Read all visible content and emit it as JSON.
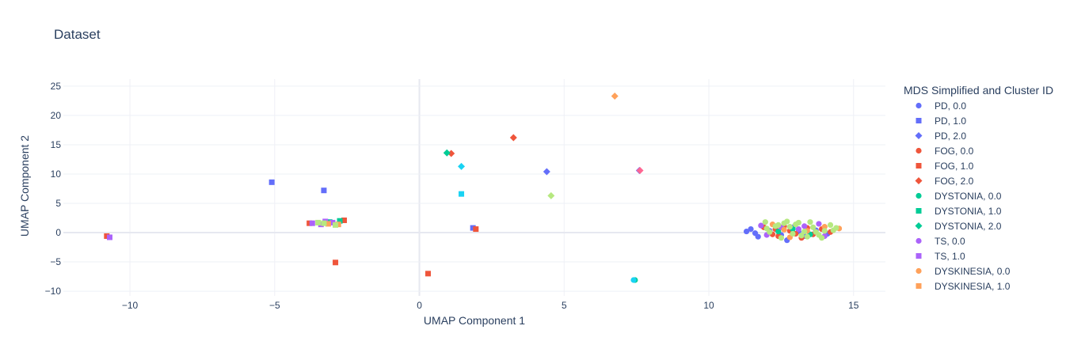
{
  "chart_title": "Dataset",
  "chart_data": {
    "type": "scatter",
    "title": "Dataset",
    "xlabel": "UMAP Component 1",
    "ylabel": "UMAP Component 2",
    "xlim": [
      -12.3,
      16.1
    ],
    "ylim": [
      -10.8,
      26.2
    ],
    "x_ticks": [
      -10,
      -5,
      0,
      5,
      10,
      15
    ],
    "y_ticks": [
      -10,
      -5,
      0,
      5,
      10,
      15,
      20,
      25
    ],
    "grid": true,
    "legend_title": "MDS Simplified and Cluster ID",
    "legend_position": "right",
    "series": [
      {
        "name": "PD, 0.0",
        "symbol": "circle",
        "color": "#636efa",
        "points": [
          [
            11.3,
            0.2
          ],
          [
            11.45,
            0.6
          ],
          [
            11.6,
            -0.1
          ],
          [
            11.7,
            -0.7
          ],
          [
            12.1,
            0.3
          ],
          [
            12.5,
            -0.4
          ],
          [
            12.9,
            0.9
          ],
          [
            13.3,
            -0.6
          ],
          [
            13.7,
            0.4
          ],
          [
            14.1,
            -0.2
          ],
          [
            12.7,
            -1.3
          ],
          [
            13.1,
            0.2
          ]
        ]
      },
      {
        "name": "PD, 1.0",
        "symbol": "square",
        "color": "#636efa",
        "points": [
          [
            -5.1,
            8.6
          ],
          [
            -3.3,
            7.2
          ],
          [
            1.85,
            0.8
          ]
        ]
      },
      {
        "name": "PD, 2.0",
        "symbol": "diamond",
        "color": "#636efa",
        "points": [
          [
            4.4,
            10.4
          ],
          [
            7.6,
            10.6
          ]
        ]
      },
      {
        "name": "FOG, 0.0",
        "symbol": "circle",
        "color": "#EF553B",
        "points": [
          [
            11.9,
            0.9
          ],
          [
            12.3,
            0.6
          ],
          [
            12.4,
            -0.6
          ],
          [
            12.8,
            0.3
          ],
          [
            13.0,
            -0.2
          ],
          [
            13.4,
            0.8
          ],
          [
            13.6,
            -0.3
          ],
          [
            13.9,
            0.6
          ],
          [
            12.2,
            -0.3
          ],
          [
            14.2,
            0.1
          ],
          [
            12.6,
            1.1
          ],
          [
            13.2,
            -0.9
          ]
        ]
      },
      {
        "name": "FOG, 1.0",
        "symbol": "square",
        "color": "#EF553B",
        "points": [
          [
            -10.8,
            -0.6
          ],
          [
            -2.6,
            2.1
          ],
          [
            -2.9,
            -5.1
          ],
          [
            0.3,
            -7.0
          ],
          [
            1.95,
            0.6
          ],
          [
            -3.8,
            1.6
          ]
        ]
      },
      {
        "name": "FOG, 2.0",
        "symbol": "diamond",
        "color": "#EF553B",
        "points": [
          [
            3.25,
            16.2
          ],
          [
            1.1,
            13.5
          ]
        ]
      },
      {
        "name": "DYSTONIA, 0.0",
        "symbol": "circle",
        "color": "#00cc96",
        "points": [
          [
            7.45,
            -8.1
          ],
          [
            12.9,
            0.6
          ],
          [
            13.5,
            -0.3
          ],
          [
            12.4,
            0.2
          ]
        ]
      },
      {
        "name": "DYSTONIA, 1.0",
        "symbol": "square",
        "color": "#00cc96",
        "points": [
          [
            -2.75,
            2.0
          ],
          [
            -3.1,
            1.8
          ]
        ]
      },
      {
        "name": "DYSTONIA, 2.0",
        "symbol": "diamond",
        "color": "#00cc96",
        "points": [
          [
            0.95,
            13.6
          ]
        ]
      },
      {
        "name": "TS, 0.0",
        "symbol": "circle",
        "color": "#ab63fa",
        "points": [
          [
            11.8,
            1.2
          ],
          [
            12.5,
            0.9
          ],
          [
            13.1,
            0.6
          ],
          [
            13.8,
            1.5
          ],
          [
            14.0,
            -0.6
          ],
          [
            12.0,
            -0.4
          ],
          [
            13.3,
            1.1
          ]
        ]
      },
      {
        "name": "TS, 1.0",
        "symbol": "square",
        "color": "#ab63fa",
        "points": [
          [
            -10.7,
            -0.8
          ],
          [
            -3.4,
            1.4
          ],
          [
            -3.25,
            1.9
          ],
          [
            -3.7,
            1.6
          ],
          [
            -3.0,
            1.7
          ]
        ]
      },
      {
        "name": "DYSKINESIA, 0.0",
        "symbol": "circle",
        "color": "#FFA15A",
        "points": [
          [
            12.2,
            1.4
          ],
          [
            12.8,
            -0.8
          ],
          [
            13.4,
            0.3
          ],
          [
            14.0,
            1.0
          ],
          [
            14.5,
            0.7
          ],
          [
            12.6,
            0.5
          ]
        ]
      },
      {
        "name": "DYSKINESIA, 1.0",
        "symbol": "square",
        "color": "#FFA15A",
        "points": [
          [
            -2.8,
            1.4
          ],
          [
            -3.15,
            1.5
          ]
        ]
      },
      {
        "name": "",
        "symbol": "diamond",
        "color": "#FFA15A",
        "points": [
          [
            6.75,
            23.3
          ]
        ]
      },
      {
        "name": "",
        "symbol": "circle",
        "color": "#b6e880",
        "points": [
          [
            11.95,
            1.8
          ],
          [
            12.4,
            1.3
          ],
          [
            12.7,
            1.9
          ],
          [
            13.0,
            1.4
          ],
          [
            13.2,
            -0.5
          ],
          [
            13.5,
            1.8
          ],
          [
            13.9,
            -0.9
          ],
          [
            14.3,
            0.4
          ],
          [
            12.1,
            0.1
          ],
          [
            12.9,
            -0.2
          ],
          [
            13.6,
            0.9
          ],
          [
            14.2,
            1.3
          ],
          [
            12.3,
            1.1
          ],
          [
            13.1,
            1.7
          ],
          [
            13.7,
            0.1
          ],
          [
            12.5,
            -0.9
          ],
          [
            13.4,
            -0.7
          ],
          [
            14.0,
            0.3
          ],
          [
            12.0,
            0.7
          ],
          [
            12.8,
            1.0
          ],
          [
            13.3,
            0.2
          ],
          [
            14.4,
            0.8
          ],
          [
            12.6,
            1.6
          ],
          [
            13.8,
            -0.4
          ]
        ]
      },
      {
        "name": "",
        "symbol": "square",
        "color": "#b6e880",
        "points": [
          [
            -3.5,
            1.7
          ],
          [
            -2.9,
            1.3
          ],
          [
            -3.3,
            1.6
          ]
        ]
      },
      {
        "name": "",
        "symbol": "diamond",
        "color": "#b6e880",
        "points": [
          [
            4.55,
            6.3
          ]
        ]
      },
      {
        "name": "",
        "symbol": "circle",
        "color": "#19d3f3",
        "points": [
          [
            7.4,
            -8.1
          ]
        ]
      },
      {
        "name": "",
        "symbol": "square",
        "color": "#19d3f3",
        "points": [
          [
            1.45,
            6.6
          ]
        ]
      },
      {
        "name": "",
        "symbol": "diamond",
        "color": "#19d3f3",
        "points": [
          [
            1.45,
            11.3
          ]
        ]
      },
      {
        "name": "",
        "symbol": "diamond",
        "color": "#FF6692",
        "points": [
          [
            7.62,
            10.6
          ]
        ]
      }
    ]
  }
}
